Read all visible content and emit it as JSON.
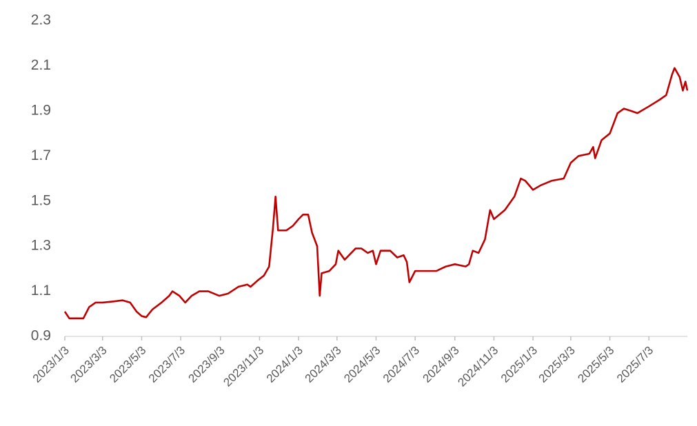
{
  "chart_data": {
    "type": "line",
    "x": [
      "2023/1/3",
      "2023/1/10",
      "2023/1/20",
      "2023/2/1",
      "2023/2/10",
      "2023/2/20",
      "2023/3/3",
      "2023/3/20",
      "2023/4/3",
      "2023/4/15",
      "2023/4/25",
      "2023/5/3",
      "2023/5/10",
      "2023/5/20",
      "2023/6/3",
      "2023/6/15",
      "2023/6/20",
      "2023/7/1",
      "2023/7/10",
      "2023/7/20",
      "2023/8/1",
      "2023/8/15",
      "2023/9/1",
      "2023/9/15",
      "2023/10/1",
      "2023/10/15",
      "2023/10/20",
      "2023/11/1",
      "2023/11/10",
      "2023/11/18",
      "2023/11/24",
      "2023/11/28",
      "2023/12/2",
      "2023/12/15",
      "2023/12/25",
      "2024/1/3",
      "2024/1/10",
      "2024/1/18",
      "2024/1/24",
      "2024/2/1",
      "2024/2/5",
      "2024/2/8",
      "2024/2/20",
      "2024/3/1",
      "2024/3/5",
      "2024/3/15",
      "2024/4/1",
      "2024/4/10",
      "2024/4/20",
      "2024/4/28",
      "2024/5/3",
      "2024/5/10",
      "2024/5/25",
      "2024/6/5",
      "2024/6/15",
      "2024/6/20",
      "2024/6/24",
      "2024/7/3",
      "2024/7/20",
      "2024/8/5",
      "2024/8/20",
      "2024/9/3",
      "2024/9/20",
      "2024/9/25",
      "2024/10/1",
      "2024/10/10",
      "2024/10/20",
      "2024/10/28",
      "2024/11/3",
      "2024/11/20",
      "2024/12/5",
      "2024/12/15",
      "2024/12/22",
      "2025/1/3",
      "2025/1/15",
      "2025/2/1",
      "2025/2/20",
      "2025/3/3",
      "2025/3/15",
      "2025/4/1",
      "2025/4/7",
      "2025/4/10",
      "2025/4/20",
      "2025/5/3",
      "2025/5/15",
      "2025/5/25",
      "2025/6/5",
      "2025/6/15",
      "2025/7/3",
      "2025/7/20",
      "2025/7/30",
      "2025/8/8",
      "2025/8/12",
      "2025/8/20",
      "2025/8/25",
      "2025/8/29",
      "2025/9/1"
    ],
    "series": [
      {
        "color": "#c00000",
        "values": [
          1.01,
          0.98,
          0.98,
          0.98,
          1.03,
          1.05,
          1.05,
          1.055,
          1.06,
          1.05,
          1.01,
          0.99,
          0.985,
          1.02,
          1.05,
          1.08,
          1.1,
          1.08,
          1.05,
          1.08,
          1.1,
          1.1,
          1.08,
          1.09,
          1.12,
          1.13,
          1.12,
          1.15,
          1.17,
          1.21,
          1.38,
          1.52,
          1.37,
          1.37,
          1.39,
          1.42,
          1.44,
          1.44,
          1.36,
          1.3,
          1.08,
          1.18,
          1.19,
          1.22,
          1.28,
          1.24,
          1.29,
          1.29,
          1.27,
          1.28,
          1.22,
          1.28,
          1.28,
          1.25,
          1.26,
          1.23,
          1.14,
          1.19,
          1.19,
          1.19,
          1.21,
          1.22,
          1.21,
          1.22,
          1.28,
          1.27,
          1.33,
          1.46,
          1.42,
          1.46,
          1.52,
          1.6,
          1.59,
          1.55,
          1.57,
          1.59,
          1.6,
          1.67,
          1.7,
          1.71,
          1.74,
          1.69,
          1.77,
          1.8,
          1.89,
          1.91,
          1.9,
          1.89,
          1.92,
          1.95,
          1.97,
          2.06,
          2.09,
          2.05,
          1.99,
          2.03,
          1.99
        ]
      }
    ],
    "xlim": [
      "2023/1/3",
      "2025/9/1"
    ],
    "xticks": [
      "2023/1/3",
      "2023/3/3",
      "2023/5/3",
      "2023/7/3",
      "2023/9/3",
      "2023/11/3",
      "2024/1/3",
      "2024/3/3",
      "2024/5/3",
      "2024/7/3",
      "2024/9/3",
      "2024/11/3",
      "2025/1/3",
      "2025/3/3",
      "2025/5/3",
      "2025/7/3"
    ],
    "ylim": [
      0.9,
      2.3
    ],
    "yticks": [
      0.9,
      1.1,
      1.3,
      1.5,
      1.7,
      1.9,
      2.1,
      2.3
    ],
    "grid": false
  }
}
